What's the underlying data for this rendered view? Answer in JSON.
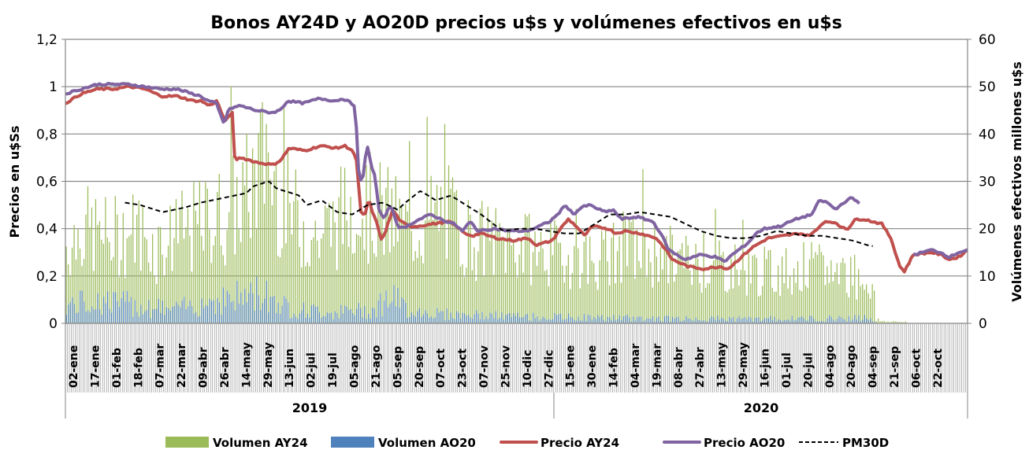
{
  "chart_data": {
    "type": "bar+line",
    "title": "Bonos AY24D y AO20D precios u$s y volúmenes efectivos en u$s",
    "ylabel": "Precios en u$Ss",
    "y2label": "Volúmenes efectivos millones u$s",
    "ylim": [
      0,
      1.2
    ],
    "y_ticks": [
      "0",
      "0,2",
      "0,4",
      "0,6",
      "0,8",
      "1",
      "1,2"
    ],
    "y_tick_values": [
      0,
      0.2,
      0.4,
      0.6,
      0.8,
      1.0,
      1.2
    ],
    "y2lim": [
      0,
      60
    ],
    "y2_ticks": [
      "0",
      "10",
      "20",
      "30",
      "40",
      "50",
      "60"
    ],
    "y2_tick_values": [
      0,
      10,
      20,
      30,
      40,
      50,
      60
    ],
    "grid": true,
    "x_tick_labels": [
      "02-ene",
      "17-ene",
      "01-feb",
      "18-feb",
      "07-mar",
      "22-mar",
      "09-abr",
      "26-abr",
      "14-may",
      "29-may",
      "13-jun",
      "02-jul",
      "19-jul",
      "05-ago",
      "21-ago",
      "05-sep",
      "20-sep",
      "07-oct",
      "23-oct",
      "07-nov",
      "25-nov",
      "10-dic",
      "27-dic",
      "15-ene",
      "30-ene",
      "14-feb",
      "04-mar",
      "19-mar",
      "08-abr",
      "27-abr",
      "13-may",
      "29-may",
      "16-jun",
      "01-jul",
      "20-jul",
      "04-ago",
      "20-ago",
      "04-sep",
      "21-sep",
      "06-oct",
      "22-oct"
    ],
    "year_groups": [
      {
        "label": "2019",
        "from": 0,
        "to": 22
      },
      {
        "label": "2020",
        "to": 41,
        "from": 22
      }
    ],
    "legend_position": "bottom",
    "series": [
      {
        "name": "Volumen AY24",
        "type": "bar",
        "axis": "y2",
        "color": "#9BBB59",
        "keyframes": [
          [
            0,
            18
          ],
          [
            0.02,
            22
          ],
          [
            0.05,
            20
          ],
          [
            0.08,
            22
          ],
          [
            0.1,
            18
          ],
          [
            0.15,
            23
          ],
          [
            0.18,
            26
          ],
          [
            0.2,
            30
          ],
          [
            0.22,
            38
          ],
          [
            0.25,
            26
          ],
          [
            0.28,
            20
          ],
          [
            0.3,
            24
          ],
          [
            0.32,
            28
          ],
          [
            0.35,
            26
          ],
          [
            0.38,
            22
          ],
          [
            0.42,
            26
          ],
          [
            0.45,
            20
          ],
          [
            0.5,
            18
          ],
          [
            0.55,
            16
          ],
          [
            0.6,
            15
          ],
          [
            0.62,
            18
          ],
          [
            0.66,
            16
          ],
          [
            0.7,
            14
          ],
          [
            0.74,
            13
          ],
          [
            0.78,
            12
          ],
          [
            0.82,
            13
          ],
          [
            0.86,
            12
          ],
          [
            0.88,
            11
          ],
          [
            0.896,
            9
          ],
          [
            0.898,
            0.6
          ],
          [
            0.93,
            0.3
          ],
          [
            0.935,
            0
          ]
        ]
      },
      {
        "name": "Volumen AO20",
        "type": "bar",
        "axis": "y2",
        "color": "#4F81BD",
        "keyframes": [
          [
            0,
            4
          ],
          [
            0.04,
            5
          ],
          [
            0.08,
            4
          ],
          [
            0.12,
            3
          ],
          [
            0.16,
            5
          ],
          [
            0.2,
            6
          ],
          [
            0.22,
            7
          ],
          [
            0.25,
            3
          ],
          [
            0.3,
            2.5
          ],
          [
            0.34,
            3
          ],
          [
            0.36,
            6
          ],
          [
            0.38,
            3
          ],
          [
            0.42,
            2
          ],
          [
            0.5,
            1.5
          ],
          [
            0.6,
            1.2
          ],
          [
            0.7,
            1
          ],
          [
            0.8,
            1
          ],
          [
            0.89,
            1.2
          ],
          [
            0.9,
            0
          ]
        ]
      },
      {
        "name": "Precio AY24",
        "type": "line",
        "axis": "y",
        "color": "#C0504D",
        "keyframes": [
          [
            0,
            0.93
          ],
          [
            0.02,
            0.97
          ],
          [
            0.04,
            0.99
          ],
          [
            0.06,
            0.99
          ],
          [
            0.08,
            1.0
          ],
          [
            0.1,
            0.99
          ],
          [
            0.12,
            0.96
          ],
          [
            0.14,
            0.96
          ],
          [
            0.16,
            0.94
          ],
          [
            0.17,
            0.94
          ],
          [
            0.18,
            0.92
          ],
          [
            0.19,
            0.94
          ],
          [
            0.2,
            0.85
          ],
          [
            0.205,
            0.88
          ],
          [
            0.21,
            0.89
          ],
          [
            0.212,
            0.69
          ],
          [
            0.22,
            0.7
          ],
          [
            0.24,
            0.68
          ],
          [
            0.26,
            0.67
          ],
          [
            0.27,
            0.69
          ],
          [
            0.28,
            0.74
          ],
          [
            0.3,
            0.73
          ],
          [
            0.32,
            0.75
          ],
          [
            0.34,
            0.74
          ],
          [
            0.35,
            0.75
          ],
          [
            0.36,
            0.73
          ],
          [
            0.365,
            0.68
          ],
          [
            0.37,
            0.47
          ],
          [
            0.375,
            0.45
          ],
          [
            0.38,
            0.53
          ],
          [
            0.385,
            0.46
          ],
          [
            0.39,
            0.43
          ],
          [
            0.395,
            0.35
          ],
          [
            0.4,
            0.38
          ],
          [
            0.41,
            0.48
          ],
          [
            0.42,
            0.43
          ],
          [
            0.43,
            0.41
          ],
          [
            0.44,
            0.41
          ],
          [
            0.46,
            0.42
          ],
          [
            0.48,
            0.43
          ],
          [
            0.49,
            0.41
          ],
          [
            0.5,
            0.38
          ],
          [
            0.51,
            0.37
          ],
          [
            0.52,
            0.38
          ],
          [
            0.54,
            0.36
          ],
          [
            0.56,
            0.35
          ],
          [
            0.58,
            0.36
          ],
          [
            0.59,
            0.33
          ],
          [
            0.61,
            0.35
          ],
          [
            0.62,
            0.4
          ],
          [
            0.63,
            0.44
          ],
          [
            0.64,
            0.41
          ],
          [
            0.65,
            0.37
          ],
          [
            0.66,
            0.41
          ],
          [
            0.68,
            0.4
          ],
          [
            0.69,
            0.38
          ],
          [
            0.7,
            0.39
          ],
          [
            0.72,
            0.38
          ],
          [
            0.74,
            0.36
          ],
          [
            0.75,
            0.32
          ],
          [
            0.76,
            0.27
          ],
          [
            0.78,
            0.24
          ],
          [
            0.8,
            0.23
          ],
          [
            0.82,
            0.24
          ],
          [
            0.83,
            0.23
          ],
          [
            0.84,
            0.26
          ],
          [
            0.86,
            0.32
          ],
          [
            0.87,
            0.34
          ],
          [
            0.88,
            0.36
          ],
          [
            0.9,
            0.37
          ],
          [
            0.92,
            0.38
          ],
          [
            0.93,
            0.37
          ],
          [
            0.94,
            0.39
          ],
          [
            0.95,
            0.43
          ],
          [
            0.96,
            0.43
          ],
          [
            0.97,
            0.41
          ],
          [
            0.98,
            0.4
          ],
          [
            0.99,
            0.44
          ],
          [
            1.0,
            0.44
          ]
        ]
      },
      {
        "name": "Precio AO20",
        "type": "line",
        "axis": "y",
        "color": "#8064A2",
        "keyframes": [
          [
            0,
            0.97
          ],
          [
            0.02,
            0.99
          ],
          [
            0.04,
            1.01
          ],
          [
            0.06,
            1.01
          ],
          [
            0.08,
            1.01
          ],
          [
            0.1,
            1.0
          ],
          [
            0.12,
            0.99
          ],
          [
            0.14,
            0.99
          ],
          [
            0.16,
            0.97
          ],
          [
            0.17,
            0.96
          ],
          [
            0.18,
            0.94
          ],
          [
            0.19,
            0.93
          ],
          [
            0.2,
            0.84
          ],
          [
            0.205,
            0.9
          ],
          [
            0.21,
            0.91
          ],
          [
            0.22,
            0.92
          ],
          [
            0.24,
            0.9
          ],
          [
            0.26,
            0.89
          ],
          [
            0.27,
            0.9
          ],
          [
            0.28,
            0.94
          ],
          [
            0.3,
            0.93
          ],
          [
            0.32,
            0.95
          ],
          [
            0.34,
            0.94
          ],
          [
            0.35,
            0.95
          ],
          [
            0.36,
            0.93
          ],
          [
            0.365,
            0.92
          ],
          [
            0.37,
            0.6
          ],
          [
            0.375,
            0.62
          ],
          [
            0.38,
            0.76
          ],
          [
            0.385,
            0.67
          ],
          [
            0.39,
            0.62
          ],
          [
            0.395,
            0.48
          ],
          [
            0.4,
            0.44
          ],
          [
            0.41,
            0.5
          ],
          [
            0.42,
            0.4
          ],
          [
            0.43,
            0.41
          ],
          [
            0.44,
            0.43
          ],
          [
            0.46,
            0.46
          ],
          [
            0.48,
            0.43
          ],
          [
            0.49,
            0.42
          ],
          [
            0.5,
            0.39
          ],
          [
            0.51,
            0.43
          ],
          [
            0.52,
            0.39
          ],
          [
            0.54,
            0.4
          ],
          [
            0.56,
            0.39
          ],
          [
            0.58,
            0.39
          ],
          [
            0.59,
            0.4
          ],
          [
            0.61,
            0.43
          ],
          [
            0.62,
            0.46
          ],
          [
            0.63,
            0.5
          ],
          [
            0.64,
            0.46
          ],
          [
            0.65,
            0.49
          ],
          [
            0.66,
            0.5
          ],
          [
            0.68,
            0.47
          ],
          [
            0.69,
            0.48
          ],
          [
            0.7,
            0.44
          ],
          [
            0.72,
            0.45
          ],
          [
            0.74,
            0.43
          ],
          [
            0.75,
            0.38
          ],
          [
            0.76,
            0.31
          ],
          [
            0.78,
            0.27
          ],
          [
            0.8,
            0.29
          ],
          [
            0.82,
            0.28
          ],
          [
            0.83,
            0.26
          ],
          [
            0.84,
            0.29
          ],
          [
            0.86,
            0.34
          ],
          [
            0.87,
            0.38
          ],
          [
            0.88,
            0.4
          ],
          [
            0.9,
            0.41
          ],
          [
            0.92,
            0.44
          ],
          [
            0.93,
            0.45
          ],
          [
            0.94,
            0.46
          ],
          [
            0.95,
            0.52
          ],
          [
            0.96,
            0.51
          ],
          [
            0.97,
            0.48
          ],
          [
            0.98,
            0.51
          ],
          [
            0.99,
            0.53
          ],
          [
            1.0,
            0.51
          ]
        ]
      },
      {
        "name": "PM30D",
        "type": "line",
        "axis": "y",
        "color": "#000000",
        "dashed": true,
        "keyframes": [
          [
            0,
            0.51
          ],
          [
            0.02,
            0.5
          ],
          [
            0.05,
            0.47
          ],
          [
            0.08,
            0.49
          ],
          [
            0.1,
            0.51
          ],
          [
            0.13,
            0.53
          ],
          [
            0.16,
            0.55
          ],
          [
            0.17,
            0.58
          ],
          [
            0.19,
            0.6
          ],
          [
            0.2,
            0.57
          ],
          [
            0.23,
            0.54
          ],
          [
            0.24,
            0.5
          ],
          [
            0.26,
            0.52
          ],
          [
            0.28,
            0.47
          ],
          [
            0.3,
            0.46
          ],
          [
            0.32,
            0.5
          ],
          [
            0.34,
            0.51
          ],
          [
            0.36,
            0.48
          ],
          [
            0.37,
            0.51
          ],
          [
            0.39,
            0.56
          ],
          [
            0.41,
            0.52
          ],
          [
            0.43,
            0.54
          ],
          [
            0.45,
            0.5
          ],
          [
            0.47,
            0.46
          ],
          [
            0.49,
            0.41
          ],
          [
            0.5,
            0.39
          ],
          [
            0.52,
            0.4
          ],
          [
            0.54,
            0.4
          ],
          [
            0.56,
            0.39
          ],
          [
            0.58,
            0.38
          ],
          [
            0.6,
            0.38
          ],
          [
            0.62,
            0.42
          ],
          [
            0.64,
            0.46
          ],
          [
            0.66,
            0.46
          ],
          [
            0.68,
            0.47
          ],
          [
            0.7,
            0.46
          ],
          [
            0.72,
            0.45
          ],
          [
            0.74,
            0.42
          ],
          [
            0.76,
            0.39
          ],
          [
            0.78,
            0.37
          ],
          [
            0.8,
            0.36
          ],
          [
            0.82,
            0.36
          ],
          [
            0.84,
            0.37
          ],
          [
            0.86,
            0.39
          ],
          [
            0.88,
            0.38
          ],
          [
            0.9,
            0.37
          ],
          [
            0.92,
            0.37
          ],
          [
            0.94,
            0.36
          ],
          [
            0.96,
            0.35
          ],
          [
            0.98,
            0.33
          ],
          [
            1.0,
            0.32
          ]
        ]
      }
    ]
  },
  "legend": [
    {
      "label": "Volumen AY24",
      "kind": "box",
      "color": "#9BBB59"
    },
    {
      "label": "Volumen AO20",
      "kind": "box",
      "color": "#4F81BD"
    },
    {
      "label": "Precio AY24",
      "kind": "line",
      "color": "#C0504D"
    },
    {
      "label": "Precio AO20",
      "kind": "line",
      "color": "#8064A2"
    },
    {
      "label": "PM30D",
      "kind": "dash",
      "color": "#000000"
    }
  ]
}
